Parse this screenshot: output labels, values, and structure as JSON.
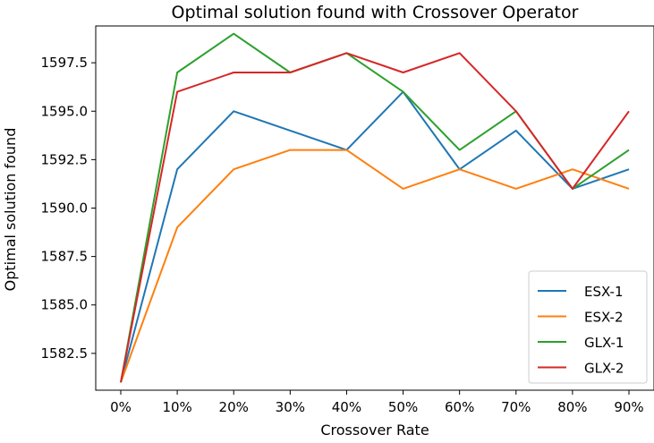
{
  "chart_data": {
    "type": "line",
    "title": "Optimal solution found with Crossover Operator",
    "xlabel": "Crossover Rate",
    "ylabel": "Optimal solution found",
    "categories": [
      "0%",
      "10%",
      "20%",
      "30%",
      "40%",
      "50%",
      "60%",
      "70%",
      "80%",
      "90%"
    ],
    "ylim": [
      1580.6,
      1599.4
    ],
    "yticks": [
      1582.5,
      1585.0,
      1587.5,
      1590.0,
      1592.5,
      1595.0,
      1597.5
    ],
    "ytick_labels": [
      "1582.5",
      "1585.0",
      "1587.5",
      "1590.0",
      "1592.5",
      "1595.0",
      "1597.5"
    ],
    "grid": false,
    "legend_position": "lower-right",
    "series": [
      {
        "name": "ESX-1",
        "color": "#1f77b4",
        "values": [
          1581,
          1592,
          1595,
          1594,
          1593,
          1596,
          1592,
          1594,
          1591,
          1592
        ]
      },
      {
        "name": "ESX-2",
        "color": "#ff7f0e",
        "values": [
          1581,
          1589,
          1592,
          1593,
          1593,
          1591,
          1592,
          1591,
          1592,
          1591
        ]
      },
      {
        "name": "GLX-1",
        "color": "#2ca02c",
        "values": [
          1581,
          1597,
          1599,
          1597,
          1598,
          1596,
          1593,
          1595,
          1591,
          1593
        ]
      },
      {
        "name": "GLX-2",
        "color": "#d62728",
        "values": [
          1581,
          1596,
          1597,
          1597,
          1598,
          1597,
          1598,
          1595,
          1591,
          1595
        ]
      }
    ]
  }
}
